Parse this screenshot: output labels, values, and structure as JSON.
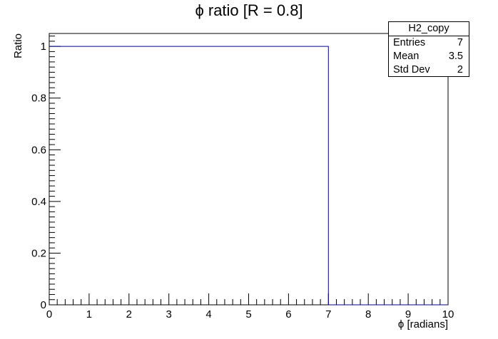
{
  "title": "ϕ ratio [R = 0.8]",
  "stats_box": {
    "name": "H2_copy",
    "rows": [
      {
        "label": "Entries",
        "value": "7"
      },
      {
        "label": "Mean",
        "value": "3.5"
      },
      {
        "label": "Std Dev",
        "value": "2"
      }
    ]
  },
  "chart_data": {
    "type": "histogram",
    "title": "ϕ ratio [R = 0.8]",
    "xlabel": "ϕ [radians]",
    "ylabel": "Ratio",
    "xlim": [
      0,
      10
    ],
    "ylim": [
      0,
      1.05
    ],
    "x_ticks": [
      0,
      1,
      2,
      3,
      4,
      5,
      6,
      7,
      8,
      9,
      10
    ],
    "y_ticks": [
      0,
      0.2,
      0.4,
      0.6,
      0.8,
      1
    ],
    "y_tick_labels": [
      "0",
      "0.2",
      "0.4",
      "0.6",
      "0.8",
      "1"
    ],
    "bins": [
      {
        "x0": 0,
        "x1": 7,
        "value": 1
      },
      {
        "x0": 7,
        "x1": 10,
        "value": 0
      }
    ],
    "line_color": "#00008b",
    "grid": false
  }
}
